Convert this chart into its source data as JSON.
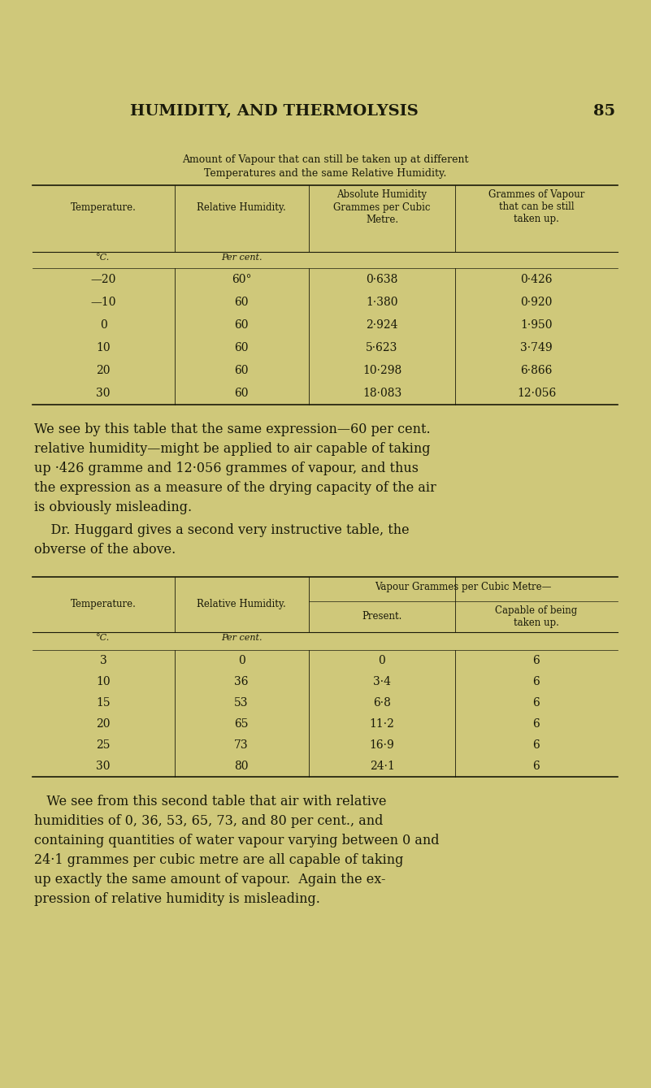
{
  "bg_color": "#cfc87a",
  "text_color": "#1a1a0a",
  "page_width": 8.01,
  "page_height": 13.39,
  "dpi": 100,
  "header_title": "HUMIDITY, AND THERMOLYSIS",
  "header_page": "85",
  "table1_caption_line1": "Amount of Vapour that can still be taken up at different",
  "table1_caption_line2": "Temperatures and the same Relative Humidity.",
  "table1_col_headers": [
    "Temperature.",
    "Relative Humidity.",
    "Absolute Humidity\nGrammes per Cubic\nMetre.",
    "Grammes of Vapour\nthat can be still\ntaken up."
  ],
  "table1_subheaders": [
    "°C.",
    "Per cent.",
    "",
    ""
  ],
  "table1_rows": [
    [
      "—20",
      "60°",
      "0·638",
      "0·426"
    ],
    [
      "—10",
      "60",
      "1·380",
      "0·920"
    ],
    [
      "0",
      "60",
      "2·924",
      "1·950"
    ],
    [
      "10",
      "60",
      "5·623",
      "3·749"
    ],
    [
      "20",
      "60",
      "10·298",
      "6·866"
    ],
    [
      "30",
      "60",
      "18·083",
      "12·056"
    ]
  ],
  "paragraph1": [
    "We see by this table that the same expression—60 per cent.",
    "relative humidity—might be applied to air capable of taking",
    "up ·426 gramme and 12·056 grammes of vapour, and thus",
    "the expression as a measure of the drying capacity of the air",
    "is obviously misleading."
  ],
  "paragraph2": [
    "    Dr. Huggard gives a second very instructive table, the",
    "obverse of the above."
  ],
  "table2_caption": "Vapour Grammes per Cubic Metre—",
  "table2_subheaders": [
    "°C.",
    "Per cent.",
    "",
    ""
  ],
  "table2_rows": [
    [
      "3",
      "0",
      "0",
      "6"
    ],
    [
      "10",
      "36",
      "3·4",
      "6"
    ],
    [
      "15",
      "53",
      "6·8",
      "6"
    ],
    [
      "20",
      "65",
      "11·2",
      "6"
    ],
    [
      "25",
      "73",
      "16·9",
      "6"
    ],
    [
      "30",
      "80",
      "24·1",
      "6"
    ]
  ],
  "paragraph3": [
    "   We see from this second table that air with relative",
    "humidities of 0, 36, 53, 65, 73, and 80 per cent., and",
    "containing quantities of water vapour varying between 0 and",
    "24·1 grammes per cubic metre are all capable of taking",
    "up exactly the same amount of vapour.  Again the ex-",
    "pression of relative humidity is misleading."
  ]
}
